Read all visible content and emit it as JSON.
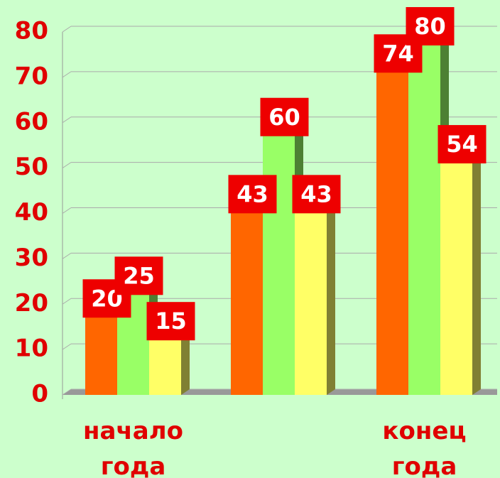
{
  "chart_data": {
    "type": "bar3d",
    "categories": [
      "начало года",
      null,
      "конец года"
    ],
    "series": [
      {
        "color": "#ff6600",
        "values": [
          20,
          43,
          74
        ]
      },
      {
        "color": "#99ff66",
        "values": [
          25,
          60,
          80
        ]
      },
      {
        "color": "#ffff66",
        "values": [
          15,
          43,
          54
        ]
      }
    ],
    "ylim": [
      0,
      80
    ],
    "yticks": [
      0,
      10,
      20,
      30,
      40,
      50,
      60,
      70,
      80
    ],
    "grid": true
  }
}
